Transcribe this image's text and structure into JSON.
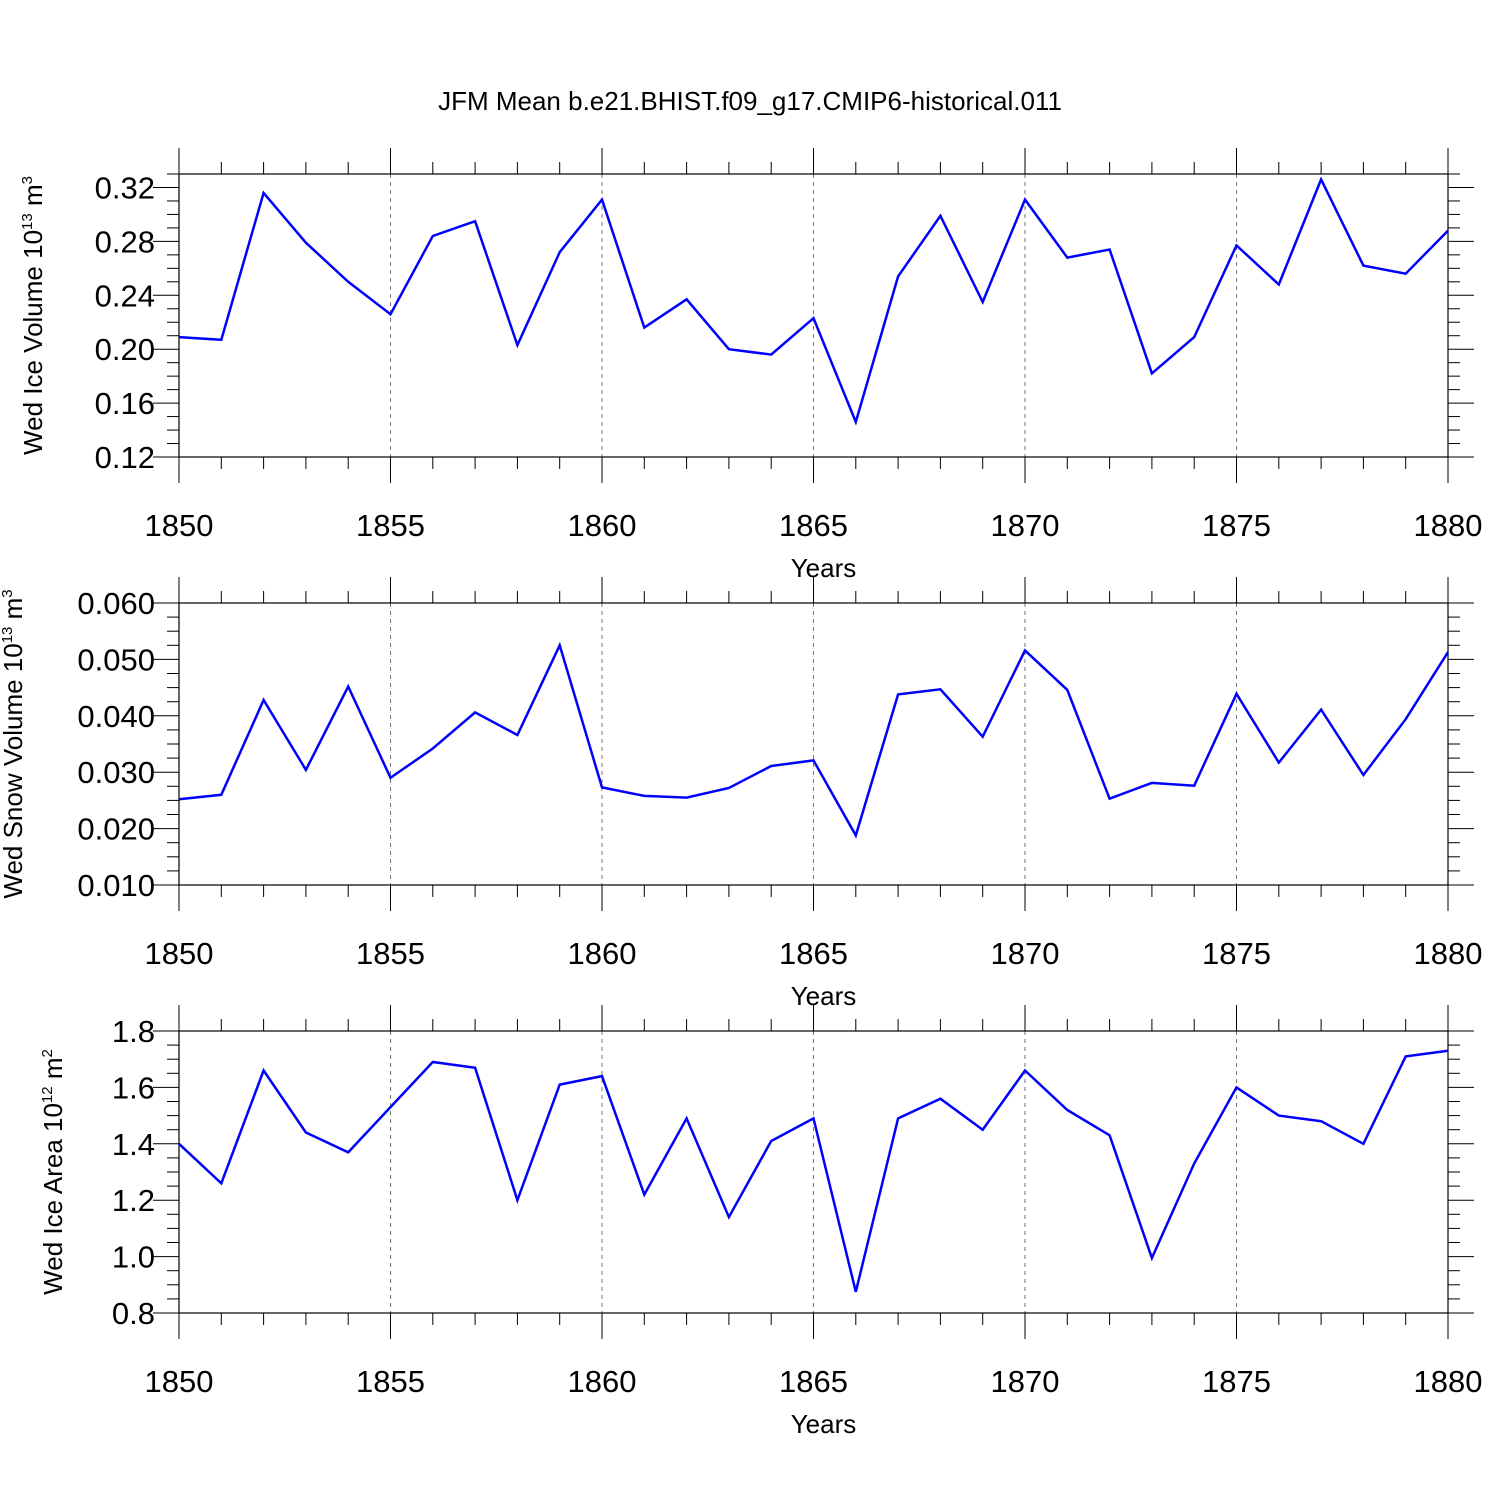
{
  "chart_data": [
    {
      "type": "line",
      "title": "JFM Mean b.e21.BHIST.f09_g17.CMIP6-historical.011",
      "xlabel": "Years",
      "ylabel": {
        "text": "Wed Ice Volume 10",
        "exponent": "13",
        "unit": " m",
        "unit_exponent": "3"
      },
      "xlim": [
        1850,
        1880
      ],
      "ylim": [
        0.12,
        0.33
      ],
      "xticks": [
        1850,
        1855,
        1860,
        1865,
        1870,
        1875,
        1880
      ],
      "yticks": [
        "0.12",
        "0.16",
        "0.20",
        "0.24",
        "0.28",
        "0.32"
      ],
      "grid": "vertical dashed at major x ticks",
      "line_color": "#0000ff",
      "x": [
        1850,
        1851,
        1852,
        1853,
        1854,
        1855,
        1856,
        1857,
        1858,
        1859,
        1860,
        1861,
        1862,
        1863,
        1864,
        1865,
        1866,
        1867,
        1868,
        1869,
        1870,
        1871,
        1872,
        1873,
        1874,
        1875,
        1876,
        1877,
        1878,
        1879,
        1880
      ],
      "values": [
        0.209,
        0.207,
        0.316,
        0.279,
        0.25,
        0.226,
        0.284,
        0.295,
        0.203,
        0.272,
        0.311,
        0.216,
        0.237,
        0.2,
        0.196,
        0.223,
        0.146,
        0.254,
        0.299,
        0.235,
        0.311,
        0.268,
        0.274,
        0.182,
        0.209,
        0.277,
        0.248,
        0.326,
        0.262,
        0.256,
        0.288
      ]
    },
    {
      "type": "line",
      "title": "",
      "xlabel": "Years",
      "ylabel": {
        "text": "Wed Snow Volume 10",
        "exponent": "13",
        "unit": " m",
        "unit_exponent": "3"
      },
      "xlim": [
        1850,
        1880
      ],
      "ylim": [
        0.01,
        0.06
      ],
      "xticks": [
        1850,
        1855,
        1860,
        1865,
        1870,
        1875,
        1880
      ],
      "yticks": [
        "0.010",
        "0.020",
        "0.030",
        "0.040",
        "0.050",
        "0.060"
      ],
      "grid": "vertical dashed at major x ticks",
      "line_color": "#0000ff",
      "x": [
        1850,
        1851,
        1852,
        1853,
        1854,
        1855,
        1856,
        1857,
        1858,
        1859,
        1860,
        1861,
        1862,
        1863,
        1864,
        1865,
        1866,
        1867,
        1868,
        1869,
        1870,
        1871,
        1872,
        1873,
        1874,
        1875,
        1876,
        1877,
        1878,
        1879,
        1880
      ],
      "values": [
        0.0252,
        0.026,
        0.0428,
        0.0304,
        0.0452,
        0.029,
        0.0342,
        0.0406,
        0.0366,
        0.0525,
        0.0273,
        0.0258,
        0.0255,
        0.0272,
        0.0311,
        0.0321,
        0.0188,
        0.0438,
        0.0447,
        0.0363,
        0.0516,
        0.0446,
        0.0253,
        0.0281,
        0.0276,
        0.0439,
        0.0317,
        0.0411,
        0.0295,
        0.0394,
        0.0513
      ]
    },
    {
      "type": "line",
      "title": "",
      "xlabel": "Years",
      "ylabel": {
        "text": "Wed Ice Area 10",
        "exponent": "12",
        "unit": " m",
        "unit_exponent": "2"
      },
      "xlim": [
        1850,
        1880
      ],
      "ylim": [
        0.8,
        1.8
      ],
      "xticks": [
        1850,
        1855,
        1860,
        1865,
        1870,
        1875,
        1880
      ],
      "yticks": [
        "0.8",
        "1.0",
        "1.2",
        "1.4",
        "1.6",
        "1.8"
      ],
      "grid": "vertical dashed at major x ticks",
      "line_color": "#0000ff",
      "x": [
        1850,
        1851,
        1852,
        1853,
        1854,
        1855,
        1856,
        1857,
        1858,
        1859,
        1860,
        1861,
        1862,
        1863,
        1864,
        1865,
        1866,
        1867,
        1868,
        1869,
        1870,
        1871,
        1872,
        1873,
        1874,
        1875,
        1876,
        1877,
        1878,
        1879,
        1880
      ],
      "values": [
        1.4,
        1.26,
        1.66,
        1.44,
        1.37,
        1.53,
        1.69,
        1.67,
        1.2,
        1.61,
        1.64,
        1.22,
        1.49,
        1.14,
        1.41,
        1.49,
        0.875,
        1.49,
        1.56,
        1.45,
        1.66,
        1.52,
        1.43,
        0.995,
        1.33,
        1.6,
        1.5,
        1.48,
        1.4,
        1.71,
        1.73
      ]
    }
  ]
}
